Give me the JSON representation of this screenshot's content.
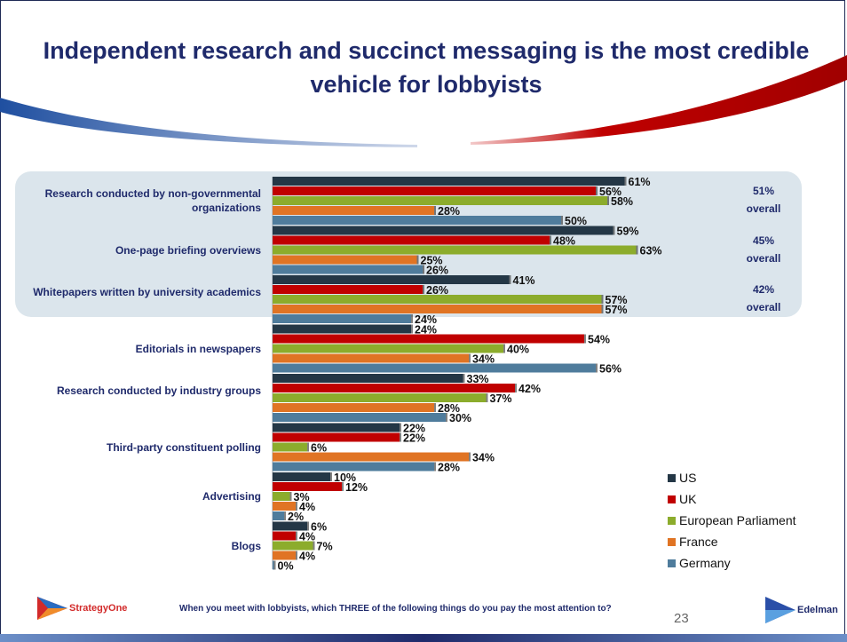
{
  "title": "Independent research and succinct messaging is the most credible vehicle for lobbyists",
  "logos": {
    "left": "StrategyOne",
    "right": "Edelman"
  },
  "footer": {
    "question": "When you meet with lobbyists, which THREE of the following things do you pay the most attention to?",
    "page_number": "23"
  },
  "overall_notes": [
    {
      "value": "51%",
      "word": "overall"
    },
    {
      "value": "45%",
      "word": "overall"
    },
    {
      "value": "42%",
      "word": "overall"
    }
  ],
  "colors": {
    "US": "#243746",
    "UK": "#c00000",
    "European Parliament": "#8cac2c",
    "France": "#e07424",
    "Germany": "#4f7c9c",
    "title": "#1f2a6b",
    "panel": "#dbe5ec"
  },
  "chart_data": {
    "type": "bar",
    "orientation": "horizontal",
    "categories": [
      "Research conducted by non-governmental organizations",
      "One-page briefing overviews",
      "Whitepapers written by university academics",
      "Editorials in newspapers",
      "Research conducted by industry groups",
      "Third-party constituent polling",
      "Advertising",
      "Blogs"
    ],
    "series": [
      {
        "name": "US",
        "values": [
          61,
          59,
          41,
          24,
          33,
          22,
          10,
          6
        ]
      },
      {
        "name": "UK",
        "values": [
          56,
          48,
          26,
          54,
          42,
          22,
          12,
          4
        ]
      },
      {
        "name": "European Parliament",
        "values": [
          58,
          63,
          57,
          40,
          37,
          6,
          3,
          7
        ]
      },
      {
        "name": "France",
        "values": [
          28,
          25,
          57,
          34,
          28,
          34,
          4,
          4
        ]
      },
      {
        "name": "Germany",
        "values": [
          50,
          26,
          24,
          56,
          30,
          28,
          2,
          0
        ]
      }
    ],
    "value_suffix": "%",
    "xlim": [
      0,
      100
    ],
    "legend_position": "bottom-right",
    "grid": false
  }
}
